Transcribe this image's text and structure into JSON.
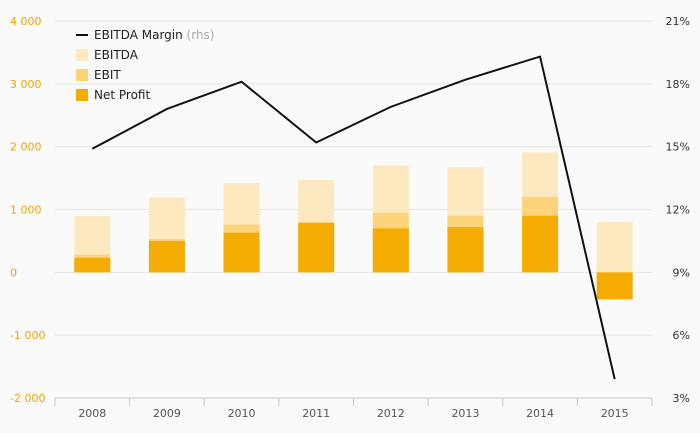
{
  "chart_data": {
    "type": "bar",
    "categories": [
      "2008",
      "2009",
      "2010",
      "2011",
      "2012",
      "2013",
      "2014",
      "2015"
    ],
    "series": [
      {
        "name": "EBITDA",
        "type": "bar",
        "axis": "left",
        "color": "#fde9bf",
        "values": [
          900,
          1190,
          1420,
          1470,
          1700,
          1670,
          1910,
          800
        ]
      },
      {
        "name": "EBIT",
        "type": "bar",
        "axis": "left",
        "color": "#fcd27a",
        "values": [
          280,
          530,
          760,
          760,
          950,
          900,
          1200,
          -30
        ]
      },
      {
        "name": "Net Profit",
        "type": "bar",
        "axis": "left",
        "color": "#f5ac00",
        "values": [
          230,
          500,
          630,
          790,
          700,
          720,
          900,
          -430
        ]
      },
      {
        "name": "EBITDA Margin",
        "name_suffix": "(rhs)",
        "type": "line",
        "axis": "right",
        "color": "#111111",
        "values": [
          14.9,
          16.8,
          18.1,
          15.2,
          16.9,
          18.2,
          19.3,
          3.9
        ]
      }
    ],
    "yleft": {
      "lim": [
        -2000,
        4000
      ],
      "ticks": [
        -2000,
        -1000,
        0,
        1000,
        2000,
        3000,
        4000
      ],
      "tick_labels": [
        "-2 000",
        "-1 000",
        "0",
        "1 000",
        "2 000",
        "3 000",
        "4 000"
      ]
    },
    "yright": {
      "lim": [
        3,
        21
      ],
      "ticks": [
        3,
        6,
        9,
        12,
        15,
        18,
        21
      ],
      "tick_labels": [
        "3%",
        "6%",
        "9%",
        "12%",
        "15%",
        "18%",
        "21%"
      ]
    },
    "legend_position": "top-left",
    "grid": true,
    "title": "",
    "xlabel": "",
    "ylabel": ""
  }
}
